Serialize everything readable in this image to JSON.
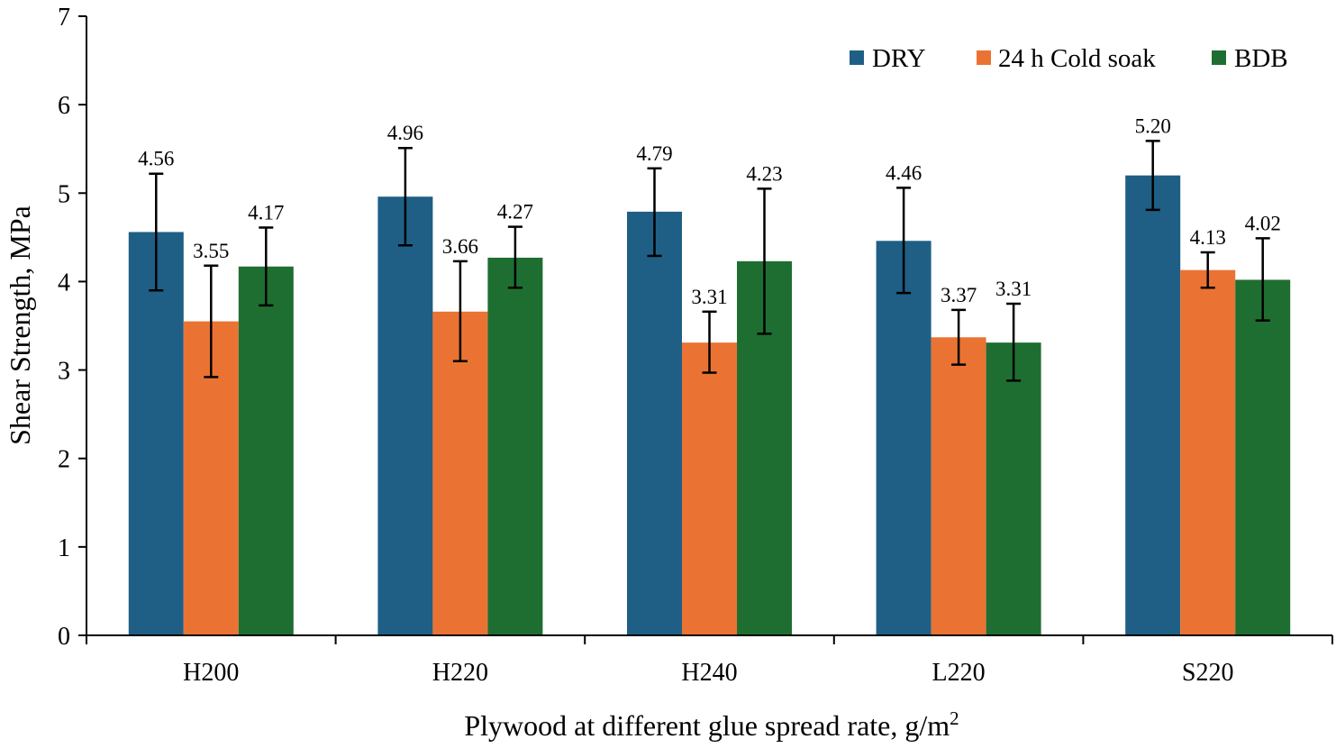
{
  "chart_data": {
    "type": "bar",
    "title": "",
    "xlabel": "Plywood at different glue spread rate, g/m",
    "xlabel_superscript": "2",
    "ylabel": "Shear Strength, MPa",
    "ylim": [
      0,
      7
    ],
    "yticks": [
      "0",
      "1",
      "2",
      "3",
      "4",
      "5",
      "6",
      "7"
    ],
    "categories": [
      "H200",
      "H220",
      "H240",
      "L220",
      "S220"
    ],
    "legend_position": "top-right",
    "series": [
      {
        "name": "DRY",
        "color": "#1f5f85",
        "values": [
          4.56,
          4.96,
          4.79,
          4.46,
          5.2
        ],
        "labels": [
          "4.56",
          "4.96",
          "4.79",
          "4.46",
          "5.20"
        ],
        "err_low": [
          3.9,
          4.41,
          4.29,
          3.87,
          4.81
        ],
        "err_high": [
          5.22,
          5.51,
          5.28,
          5.06,
          5.59
        ]
      },
      {
        "name": "24 h Cold soak",
        "color": "#ea7333",
        "values": [
          3.55,
          3.66,
          3.31,
          3.37,
          4.13
        ],
        "labels": [
          "3.55",
          "3.66",
          "3.31",
          "3.37",
          "4.13"
        ],
        "err_low": [
          2.92,
          3.1,
          2.97,
          3.06,
          3.93
        ],
        "err_high": [
          4.18,
          4.23,
          3.66,
          3.68,
          4.33
        ]
      },
      {
        "name": "BDB",
        "color": "#1f6e31",
        "values": [
          4.17,
          4.27,
          4.23,
          3.31,
          4.02
        ],
        "labels": [
          "4.17",
          "4.27",
          "4.23",
          "3.31",
          "4.02"
        ],
        "err_low": [
          3.73,
          3.93,
          3.41,
          2.88,
          3.56
        ],
        "err_high": [
          4.61,
          4.62,
          5.05,
          3.75,
          4.49
        ]
      }
    ]
  }
}
